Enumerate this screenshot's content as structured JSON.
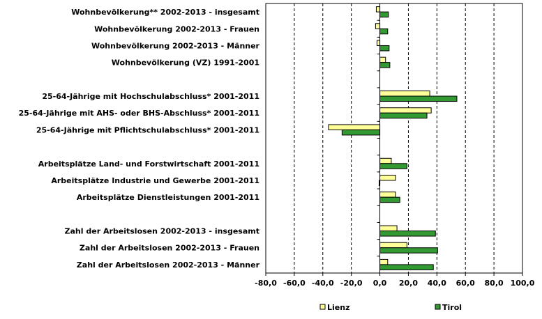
{
  "chart_data": {
    "type": "bar",
    "orientation": "horizontal",
    "categories": [
      "Wohnbevölkerung** 2002-2013 - insgesamt",
      "Wohnbevölkerung 2002-2013 - Frauen",
      "Wohnbevölkerung 2002-2013 - Männer",
      "Wohnbevölkerung (VZ) 1991-2001",
      "",
      "25-64-Jährige mit Hochschulabschluss* 2001-2011",
      "25-64-Jährige mit AHS- oder BHS-Abschluss* 2001-2011",
      "25-64-Jährige mit Pflichtschulabschluss* 2001-2011",
      "",
      "Arbeitsplätze Land- und Forstwirtschaft 2001-2011",
      "Arbeitsplätze Industrie und Gewerbe 2001-2011",
      "Arbeitsplätze Dienstleistungen 2001-2011",
      "",
      "Zahl der Arbeitslosen 2002-2013 - insgesamt",
      "Zahl der Arbeitslosen 2002-2013 - Frauen",
      "Zahl der Arbeitslosen 2002-2013 - Männer"
    ],
    "series": [
      {
        "name": "Lienz",
        "color": "#ffff99",
        "values": [
          -2.5,
          -3,
          -2,
          4,
          null,
          35,
          36,
          -36,
          null,
          8,
          11,
          11,
          null,
          12,
          19,
          5.5
        ]
      },
      {
        "name": "Tirol",
        "color": "#339933",
        "values": [
          6,
          5.5,
          6.5,
          7,
          null,
          54,
          33,
          -26.5,
          null,
          19,
          -0.5,
          14,
          null,
          39,
          40.5,
          37.5
        ]
      }
    ],
    "xlim": [
      -80,
      100
    ],
    "xticks": [
      "-80,0",
      "-60,0",
      "-40,0",
      "-20,0",
      "0,0",
      "20,0",
      "40,0",
      "60,0",
      "80,0",
      "100,0"
    ],
    "grid": true,
    "legend_position": "bottom"
  }
}
